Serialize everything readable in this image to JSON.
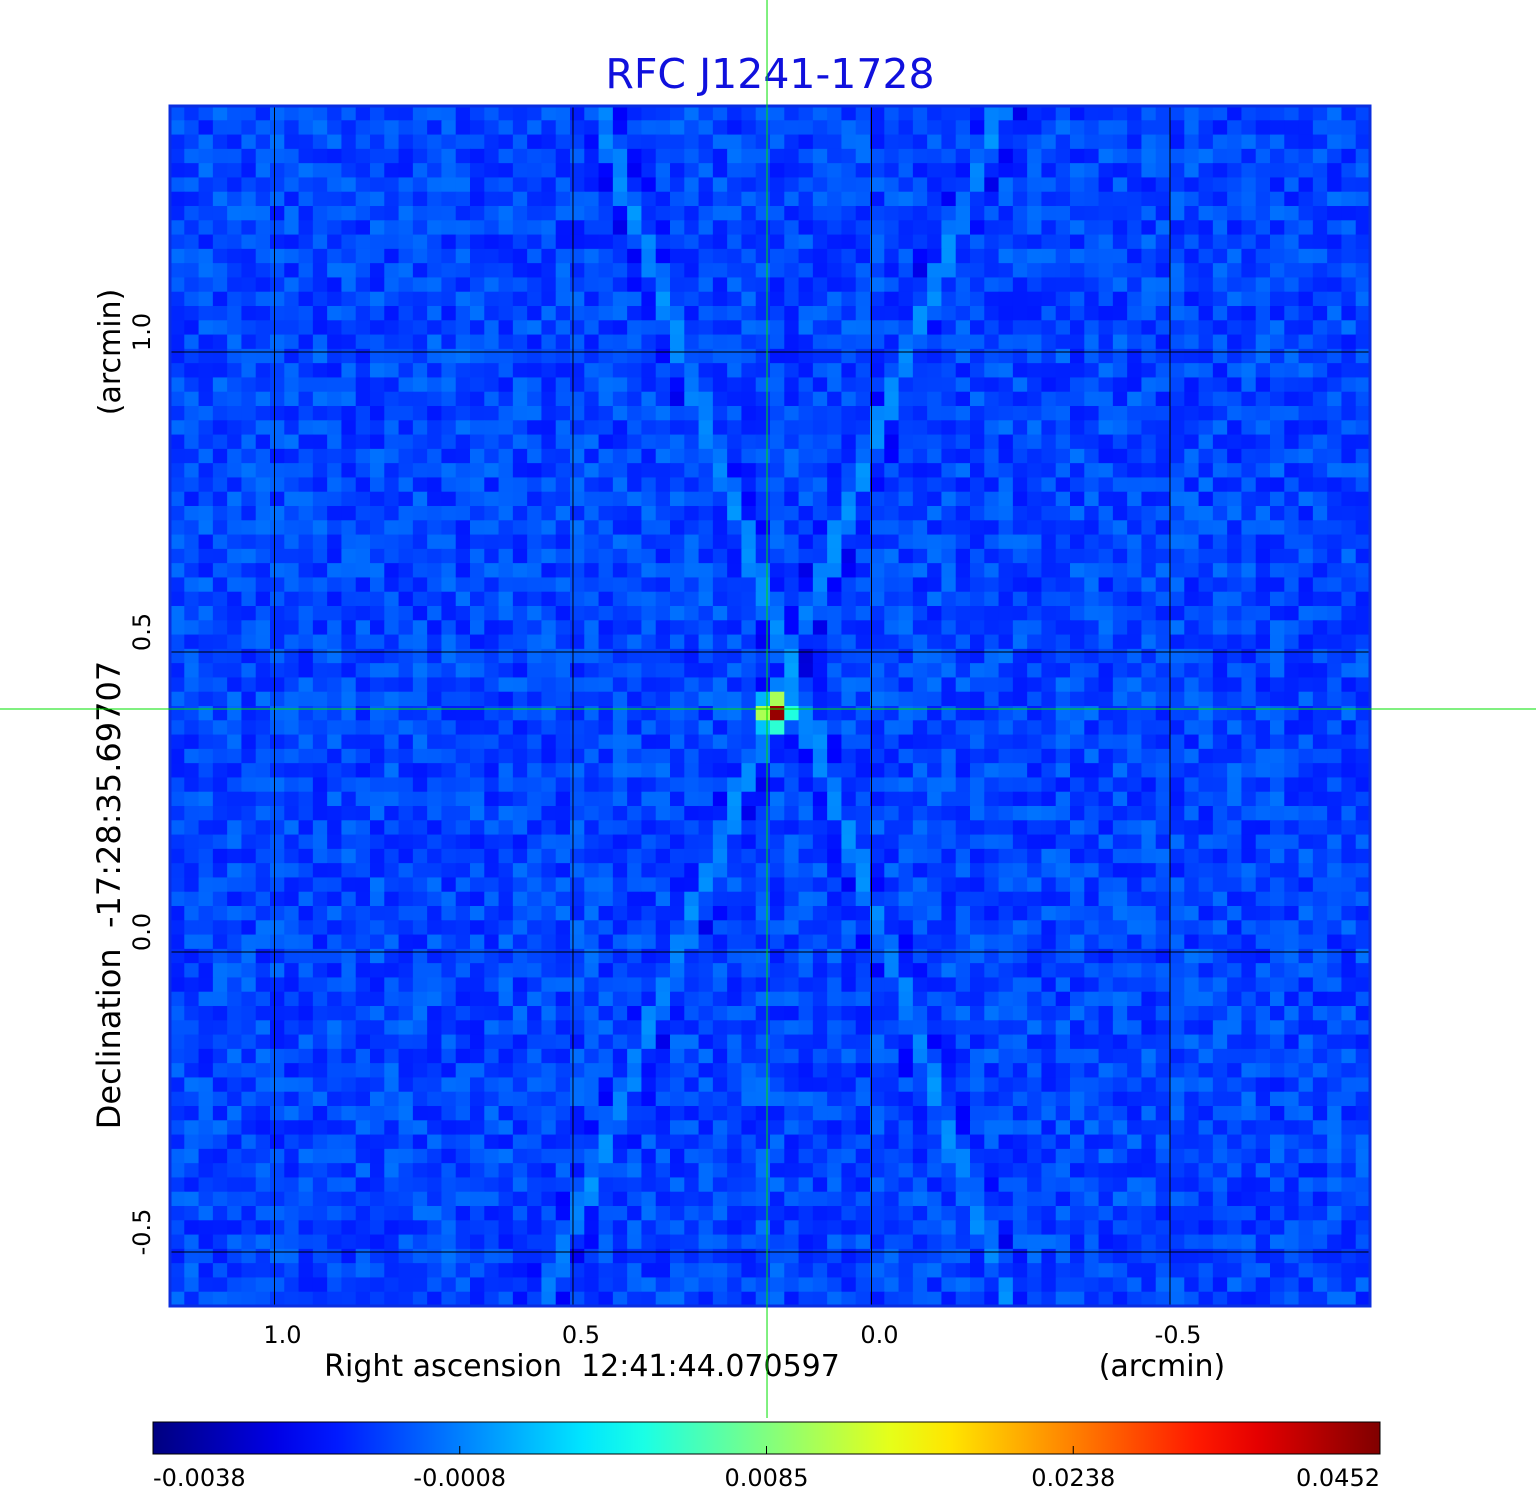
{
  "chart_data": {
    "type": "heatmap",
    "title": "RFC J1241-1728",
    "xlabel": "Right ascension  12:41:44.070597",
    "xunit": "(arcmin)",
    "ylabel": "Declination  -17:28:35.69707",
    "yunit": "(arcmin)",
    "x_axis": {
      "reversed": true,
      "range": [
        1.175,
        -0.835
      ],
      "ticks": [
        1.0,
        0.5,
        0.0,
        -0.5
      ],
      "tick_labels": [
        "1.0",
        "0.5",
        "0.0",
        "-0.5"
      ]
    },
    "y_axis": {
      "range": [
        -0.59,
        1.41
      ],
      "ticks": [
        1.0,
        0.5,
        0.0,
        -0.5
      ],
      "tick_labels": [
        "1.0",
        "0.5",
        "0.0",
        "-0.5"
      ]
    },
    "grid": true,
    "crosshair": {
      "x": 0.175,
      "y": 0.405,
      "color": "#00e000"
    },
    "colormap": "jet",
    "colorbar": {
      "ticks": [
        -0.0038,
        -0.0008,
        0.0085,
        0.0238,
        0.0452
      ],
      "tick_labels": [
        "-0.0038",
        "-0.0008",
        "0.0085",
        "0.0238",
        "0.0452"
      ]
    },
    "features": {
      "background_level": -0.0015,
      "peak": {
        "x": 0.16,
        "y": 0.4,
        "value": 0.0452
      },
      "sidelobe_arms": [
        {
          "from": [
            0.46,
            1.41
          ],
          "to": [
            -0.23,
            -0.59
          ]
        },
        {
          "from": [
            -0.22,
            1.41
          ],
          "to": [
            0.55,
            -0.59
          ]
        }
      ]
    }
  },
  "colors": {
    "title": "#1010dd",
    "frame": "#0a2ee0",
    "grid": "#000000",
    "crosshair": "#00e000"
  }
}
